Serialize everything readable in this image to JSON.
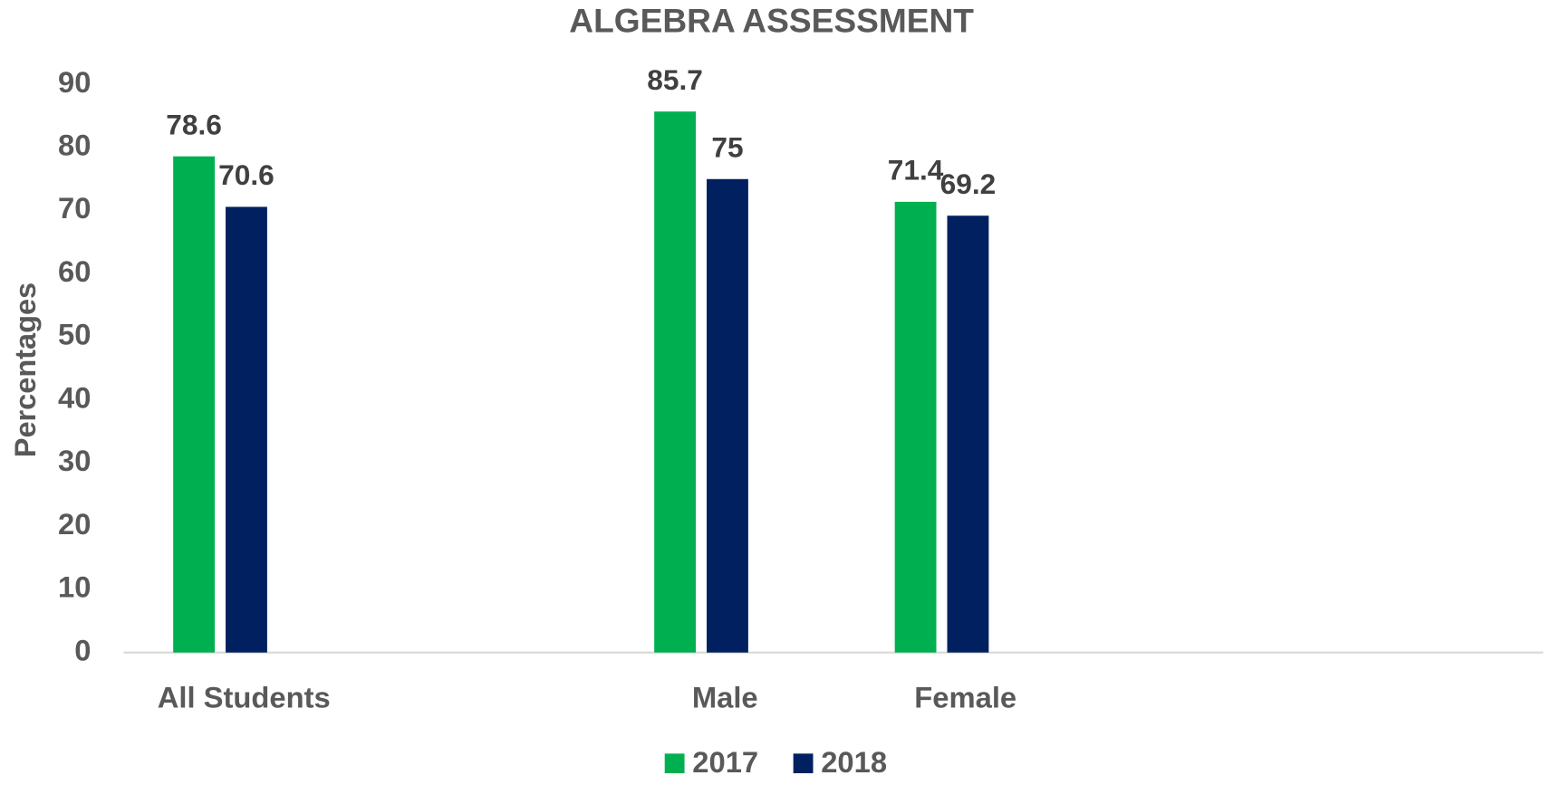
{
  "chart_data": {
    "type": "bar",
    "title": "ALGEBRA ASSESSMENT",
    "y_label": "Percentages",
    "categories": [
      "All Students",
      null,
      "Male",
      "Female",
      null,
      null
    ],
    "series": [
      {
        "name": "2017",
        "color": "#00b050",
        "values": [
          78.6,
          null,
          85.7,
          71.4,
          null,
          null
        ]
      },
      {
        "name": "2018",
        "color": "#002060",
        "values": [
          70.6,
          null,
          75,
          69.2,
          null,
          null
        ]
      }
    ],
    "ylim": [
      0,
      90
    ],
    "yticks": [
      0,
      10,
      20,
      30,
      40,
      50,
      60,
      70,
      80,
      90
    ],
    "grid": false,
    "legend": "bottom"
  }
}
